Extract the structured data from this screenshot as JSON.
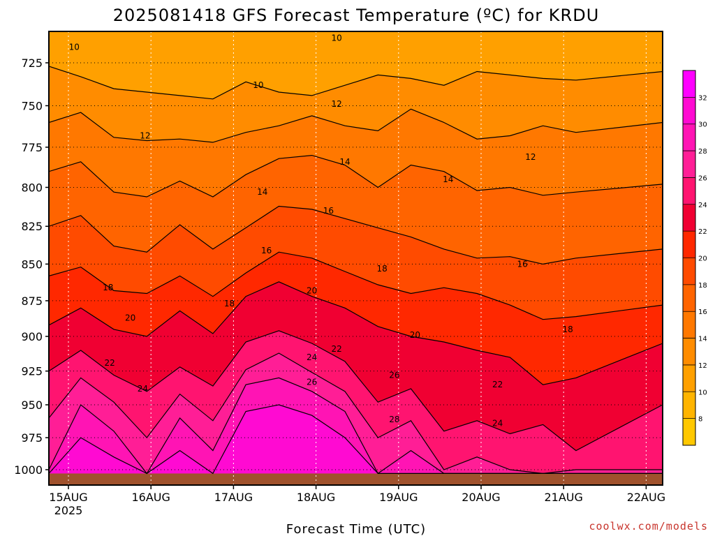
{
  "chart_data": {
    "type": "heatmap",
    "title": "2025081418 GFS Forecast Temperature (ºC) for KRDU",
    "xlabel": "Forecast Time (UTC)",
    "ylabel": "",
    "x_ticks": [
      {
        "label": "15AUG",
        "sublabel": "2025",
        "day": 15
      },
      {
        "label": "16AUG",
        "sublabel": "",
        "day": 16
      },
      {
        "label": "17AUG",
        "sublabel": "",
        "day": 17
      },
      {
        "label": "18AUG",
        "sublabel": "",
        "day": 18
      },
      {
        "label": "19AUG",
        "sublabel": "",
        "day": 19
      },
      {
        "label": "20AUG",
        "sublabel": "",
        "day": 20
      },
      {
        "label": "21AUG",
        "sublabel": "",
        "day": 21
      },
      {
        "label": "22AUG",
        "sublabel": "",
        "day": 22
      }
    ],
    "x_range_days": [
      14.75,
      22.25
    ],
    "y_ticks": [
      725,
      750,
      775,
      800,
      825,
      850,
      875,
      900,
      925,
      950,
      975,
      1000
    ],
    "y_range_hpa": [
      700,
      1010
    ],
    "y_scale": "log-pressure (inverted)",
    "surface_pressure_hpa": 1003,
    "colorbar": {
      "ticks": [
        8,
        10,
        12,
        14,
        16,
        18,
        20,
        22,
        24,
        26,
        28,
        30,
        32
      ],
      "colors": [
        "#ffb400",
        "#ffa000",
        "#ff8c00",
        "#ff7800",
        "#ff6400",
        "#ff4b00",
        "#ff2800",
        "#f00032",
        "#ff1470",
        "#ff1e96",
        "#ff14b4",
        "#ff0ad2",
        "#ff00ff"
      ]
    },
    "contour_levels": [
      10,
      12,
      14,
      16,
      18,
      20,
      22,
      24,
      26,
      28
    ],
    "series": [
      {
        "level": 10,
        "values": [
          727,
          733,
          740,
          742,
          744,
          746,
          736,
          742,
          744,
          738,
          732,
          734,
          738,
          730,
          732,
          734,
          735,
          730
        ]
      },
      {
        "level": 12,
        "values": [
          760,
          754,
          769,
          771,
          770,
          772,
          766,
          762,
          756,
          762,
          765,
          752,
          760,
          770,
          768,
          762,
          766,
          760
        ]
      },
      {
        "level": 14,
        "values": [
          790,
          784,
          803,
          806,
          796,
          806,
          792,
          782,
          780,
          786,
          800,
          786,
          790,
          802,
          800,
          805,
          803,
          798
        ]
      },
      {
        "level": 16,
        "values": [
          825,
          818,
          838,
          842,
          824,
          840,
          826,
          812,
          814,
          820,
          826,
          832,
          840,
          846,
          845,
          850,
          846,
          840
        ]
      },
      {
        "level": 18,
        "values": [
          858,
          852,
          868,
          870,
          858,
          872,
          856,
          842,
          846,
          855,
          864,
          870,
          866,
          870,
          878,
          888,
          886,
          878
        ]
      },
      {
        "level": 20,
        "values": [
          892,
          880,
          895,
          900,
          882,
          898,
          872,
          862,
          872,
          880,
          893,
          900,
          904,
          910,
          915,
          935,
          930,
          905
        ]
      },
      {
        "level": 22,
        "values": [
          925,
          910,
          928,
          940,
          922,
          936,
          904,
          896,
          905,
          918,
          948,
          938,
          970,
          962,
          972,
          965,
          985,
          950
        ]
      },
      {
        "level": 24,
        "values": [
          960,
          930,
          948,
          975,
          942,
          962,
          924,
          912,
          926,
          940,
          975,
          962,
          1000,
          990,
          1000,
          1003,
          1000,
          1000
        ]
      },
      {
        "level": 26,
        "values": [
          1000,
          950,
          970,
          1003,
          960,
          985,
          935,
          930,
          940,
          955,
          1003,
          985,
          1003,
          1003,
          1003,
          1003,
          1003,
          1003
        ]
      },
      {
        "level": 28,
        "values": [
          1003,
          975,
          990,
          1003,
          985,
          1003,
          955,
          950,
          958,
          975,
          1003,
          1003,
          1003,
          1003,
          1003,
          1003,
          1003,
          1003
        ]
      }
    ],
    "series_x_days": [
      14.75,
      15.15,
      15.55,
      15.95,
      16.35,
      16.75,
      17.15,
      17.55,
      17.95,
      18.35,
      18.75,
      19.15,
      19.55,
      19.95,
      20.35,
      20.75,
      21.15,
      22.25
    ],
    "contour_labels": [
      {
        "text": "10",
        "day": 15.07,
        "p": 716
      },
      {
        "text": "10",
        "day": 17.3,
        "p": 738
      },
      {
        "text": "10",
        "day": 18.25,
        "p": 711
      },
      {
        "text": "12",
        "day": 15.93,
        "p": 768
      },
      {
        "text": "12",
        "day": 18.25,
        "p": 749
      },
      {
        "text": "14",
        "day": 17.35,
        "p": 803
      },
      {
        "text": "14",
        "day": 18.35,
        "p": 784
      },
      {
        "text": "16",
        "day": 17.4,
        "p": 841
      },
      {
        "text": "16",
        "day": 18.15,
        "p": 815
      },
      {
        "text": "18",
        "day": 15.48,
        "p": 866
      },
      {
        "text": "18",
        "day": 16.95,
        "p": 877
      },
      {
        "text": "18",
        "day": 18.8,
        "p": 853
      },
      {
        "text": "20",
        "day": 15.75,
        "p": 887
      },
      {
        "text": "20",
        "day": 17.95,
        "p": 868
      },
      {
        "text": "20",
        "day": 19.2,
        "p": 899
      },
      {
        "text": "22",
        "day": 15.5,
        "p": 919
      },
      {
        "text": "22",
        "day": 18.25,
        "p": 909
      },
      {
        "text": "22",
        "day": 20.2,
        "p": 935
      },
      {
        "text": "24",
        "day": 15.9,
        "p": 938
      },
      {
        "text": "24",
        "day": 17.95,
        "p": 915
      },
      {
        "text": "24",
        "day": 20.2,
        "p": 964
      },
      {
        "text": "26",
        "day": 17.95,
        "p": 933
      },
      {
        "text": "26",
        "day": 18.95,
        "p": 928
      },
      {
        "text": "28",
        "day": 18.95,
        "p": 961
      },
      {
        "text": "14",
        "day": 19.6,
        "p": 795
      },
      {
        "text": "12",
        "day": 20.6,
        "p": 781
      },
      {
        "text": "16",
        "day": 20.5,
        "p": 850
      },
      {
        "text": "18",
        "day": 21.05,
        "p": 895
      }
    ],
    "grid": true
  },
  "credit": "coolwx.com/models"
}
